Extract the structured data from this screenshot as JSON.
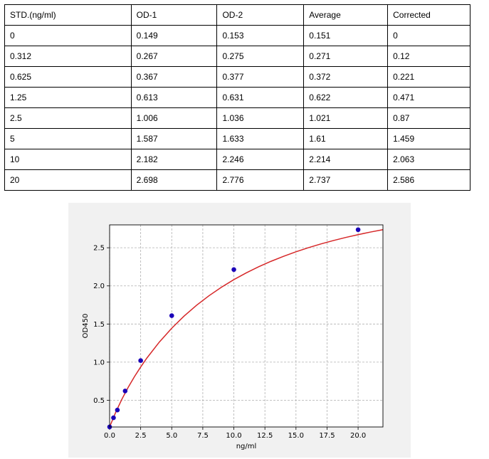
{
  "table": {
    "headers": [
      "STD.(ng/ml)",
      "OD-1",
      "OD-2",
      "Average",
      "Corrected"
    ],
    "rows": [
      [
        "0",
        "0.149",
        "0.153",
        "0.151",
        "0"
      ],
      [
        "0.312",
        "0.267",
        "0.275",
        "0.271",
        "0.12"
      ],
      [
        "0.625",
        "0.367",
        "0.377",
        "0.372",
        "0.221"
      ],
      [
        "1.25",
        "0.613",
        "0.631",
        "0.622",
        "0.471"
      ],
      [
        "2.5",
        "1.006",
        "1.036",
        "1.021",
        "0.87"
      ],
      [
        "5",
        "1.587",
        "1.633",
        "1.61",
        "1.459"
      ],
      [
        "10",
        "2.182",
        "2.246",
        "2.214",
        "2.063"
      ],
      [
        "20",
        "2.698",
        "2.776",
        "2.737",
        "2.586"
      ]
    ]
  },
  "chart_data": {
    "type": "scatter",
    "title": "",
    "xlabel": "ng/ml",
    "ylabel": "OD450",
    "xlim": [
      0,
      22
    ],
    "ylim": [
      0.15,
      2.8
    ],
    "xticks": [
      "0.0",
      "2.5",
      "5.0",
      "7.5",
      "10.0",
      "12.5",
      "15.0",
      "17.5",
      "20.0"
    ],
    "yticks": [
      "0.5",
      "1.0",
      "1.5",
      "2.0",
      "2.5"
    ],
    "grid": true,
    "points": {
      "x": [
        0,
        0.312,
        0.625,
        1.25,
        2.5,
        5,
        10,
        20
      ],
      "y": [
        0.151,
        0.271,
        0.372,
        0.622,
        1.021,
        1.61,
        2.214,
        2.737
      ],
      "color": "#1a00b8"
    },
    "fit_curve": {
      "color": "#d62728",
      "x": [
        0,
        0.5,
        1,
        1.5,
        2,
        2.5,
        3,
        4,
        5,
        6,
        7,
        8,
        9,
        10,
        11,
        12,
        13,
        14,
        15,
        16,
        17,
        18,
        19,
        20,
        21,
        22
      ],
      "y": [
        0.151,
        0.346,
        0.518,
        0.671,
        0.81,
        0.937,
        1.054,
        1.263,
        1.445,
        1.605,
        1.746,
        1.871,
        1.982,
        2.082,
        2.171,
        2.251,
        2.323,
        2.388,
        2.447,
        2.501,
        2.55,
        2.594,
        2.635,
        2.672,
        2.706,
        2.737
      ]
    }
  }
}
